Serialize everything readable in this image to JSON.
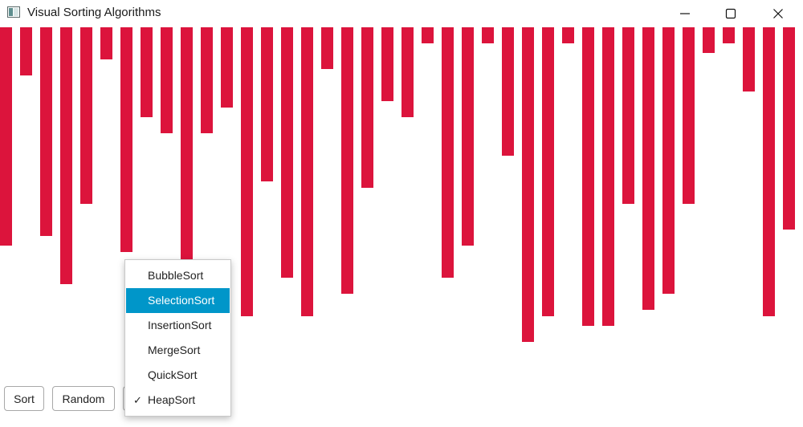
{
  "window": {
    "title": "Visual Sorting Algorithms",
    "minimize_icon": "minimize-icon",
    "maximize_icon": "maximize-icon",
    "close_icon": "close-icon"
  },
  "bars": {
    "color": "#dc143c",
    "max_value": 100,
    "values": [
      68,
      15,
      65,
      80,
      55,
      10,
      70,
      28,
      33,
      73,
      33,
      25,
      90,
      48,
      78,
      90,
      13,
      83,
      50,
      23,
      28,
      5,
      78,
      68,
      5,
      40,
      98,
      90,
      5,
      93,
      93,
      55,
      88,
      83,
      55,
      8,
      5,
      20,
      90,
      63
    ]
  },
  "toolbar": {
    "sort_label": "Sort",
    "random_label": "Random"
  },
  "algorithm_menu": {
    "items": [
      {
        "label": "BubbleSort",
        "highlighted": false,
        "checked": false
      },
      {
        "label": "SelectionSort",
        "highlighted": true,
        "checked": false
      },
      {
        "label": "InsertionSort",
        "highlighted": false,
        "checked": false
      },
      {
        "label": "MergeSort",
        "highlighted": false,
        "checked": false
      },
      {
        "label": "QuickSort",
        "highlighted": false,
        "checked": false
      },
      {
        "label": "HeapSort",
        "highlighted": false,
        "checked": true
      }
    ],
    "check_mark": "✓",
    "highlight_color": "#0096c9"
  }
}
